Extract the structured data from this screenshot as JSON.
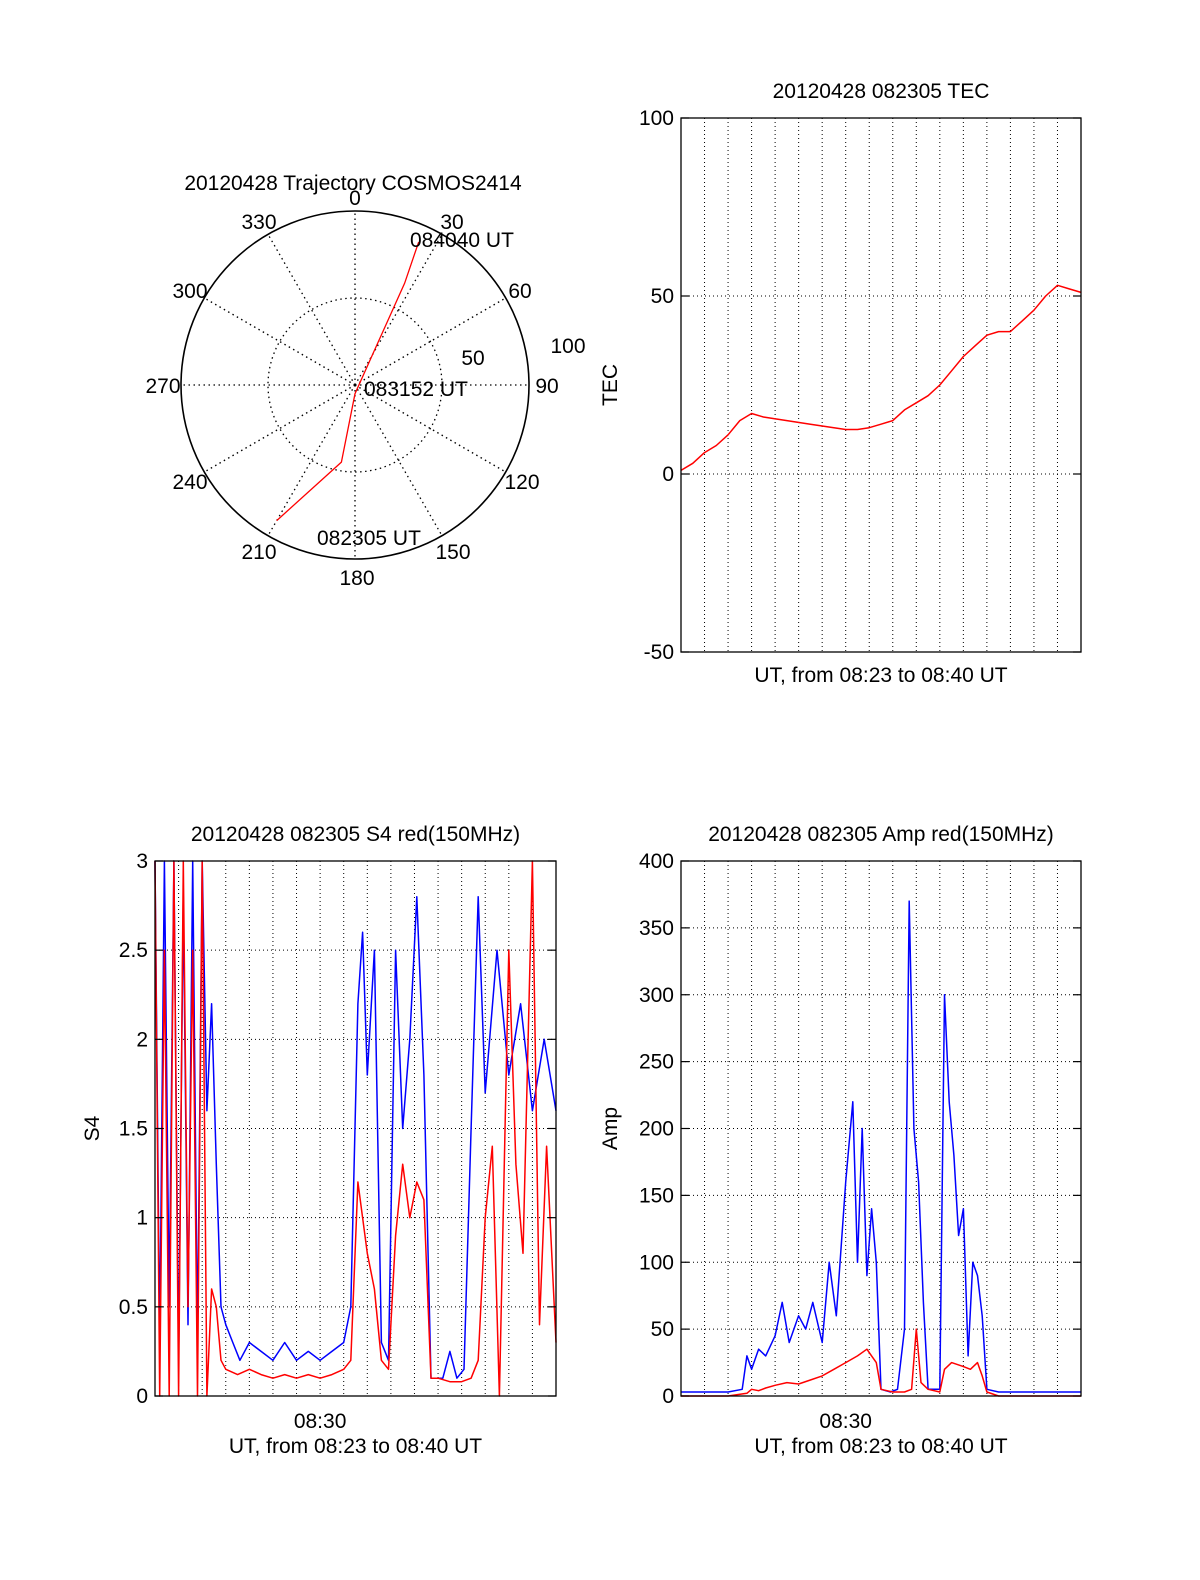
{
  "chart_data": [
    {
      "type": "polar",
      "title": "20120428 Trajectory COSMOS2414",
      "angle_labels": [
        "0",
        "30",
        "60",
        "90",
        "120",
        "150",
        "180",
        "210",
        "240",
        "270",
        "300",
        "330"
      ],
      "angle_ticks": [
        0,
        30,
        60,
        90,
        120,
        150,
        180,
        210,
        240,
        270,
        300,
        330
      ],
      "radial_labels": [
        "50",
        "100"
      ],
      "radial_ticks": [
        50,
        100
      ],
      "rlim": [
        0,
        100
      ],
      "grid": true,
      "line_color": "#ff0000",
      "trajectory": [
        {
          "az": 210,
          "r": 90
        },
        {
          "az": 190,
          "r": 45
        },
        {
          "az": 180,
          "r": 5
        },
        {
          "az": 30,
          "r": 20
        },
        {
          "az": 26,
          "r": 65
        },
        {
          "az": 24,
          "r": 90
        }
      ],
      "annotations": [
        {
          "text": "084040 UT",
          "az": 24,
          "r": 90
        },
        {
          "text": "083152 UT",
          "az": 0,
          "r": 0
        },
        {
          "text": "082305 UT",
          "az": 210,
          "r": 90
        }
      ]
    },
    {
      "type": "line",
      "title": "20120428 082305 TEC",
      "ylabel": "TEC",
      "xlabel": "UT, from 08:23 to 08:40 UT",
      "xlim": [
        0,
        17
      ],
      "ylim": [
        -50,
        100
      ],
      "yticks": [
        -50,
        0,
        50,
        100
      ],
      "ytick_labels": [
        "-50",
        "0",
        "50",
        "100"
      ],
      "grid": true,
      "series": [
        {
          "color": "#ff0000",
          "x": [
            0,
            0.5,
            1.0,
            1.5,
            2.0,
            2.5,
            3.0,
            3.5,
            4.5,
            5.5,
            6.5,
            7.0,
            7.5,
            8.0,
            8.5,
            9.0,
            9.5,
            10.0,
            10.5,
            11.0,
            11.5,
            12.0,
            12.5,
            13.0,
            13.5,
            14.0,
            14.5,
            15.0,
            15.5,
            16.0,
            16.5,
            17.0
          ],
          "y": [
            1,
            3,
            6,
            8,
            11,
            15,
            17,
            16,
            15,
            14,
            13,
            12.5,
            12.5,
            13,
            14,
            15,
            18,
            20,
            22,
            25,
            29,
            33,
            36,
            39,
            40,
            40,
            43,
            46,
            50,
            53,
            52,
            51
          ]
        }
      ]
    },
    {
      "type": "line",
      "title": "20120428 082305 S4 red(150MHz)",
      "ylabel": "S4",
      "xlabel": "UT, from 08:23 to 08:40 UT",
      "xlim": [
        0,
        17
      ],
      "xticks": [
        7
      ],
      "xtick_labels": [
        "08:30"
      ],
      "ylim": [
        0,
        3
      ],
      "yticks": [
        0,
        0.5,
        1,
        1.5,
        2,
        2.5,
        3
      ],
      "ytick_labels": [
        "0",
        "0.5",
        "1",
        "1.5",
        "2",
        "2.5",
        "3"
      ],
      "grid": true,
      "series": [
        {
          "color": "#0000ff",
          "x": [
            0,
            0.2,
            0.4,
            0.6,
            0.8,
            1.0,
            1.2,
            1.4,
            1.6,
            1.8,
            2.0,
            2.2,
            2.4,
            2.6,
            2.8,
            3.0,
            3.3,
            3.6,
            4.0,
            4.5,
            5.0,
            5.5,
            6.0,
            6.5,
            7.0,
            7.5,
            8.0,
            8.3,
            8.6,
            8.8,
            9.0,
            9.3,
            9.6,
            9.9,
            10.2,
            10.5,
            10.8,
            11.1,
            11.4,
            11.7,
            12.0,
            12.2,
            12.5,
            12.8,
            13.1,
            13.4,
            13.7,
            14.0,
            14.5,
            15.0,
            15.5,
            16.0,
            16.5,
            17.0
          ],
          "y": [
            3,
            0.3,
            3,
            0.5,
            3,
            0.2,
            2.8,
            0.4,
            3,
            0.3,
            3,
            1.6,
            2.2,
            1.3,
            0.5,
            0.4,
            0.3,
            0.2,
            0.3,
            0.25,
            0.2,
            0.3,
            0.2,
            0.25,
            0.2,
            0.25,
            0.3,
            0.5,
            2.2,
            2.6,
            1.8,
            2.5,
            0.3,
            0.2,
            2.5,
            1.5,
            2.0,
            2.8,
            1.8,
            0.1,
            0.1,
            0.1,
            0.25,
            0.1,
            0.15,
            1.5,
            2.8,
            1.7,
            2.5,
            1.8,
            2.2,
            1.6,
            2.0,
            1.6
          ]
        },
        {
          "color": "#ff0000",
          "x": [
            0,
            0.2,
            0.4,
            0.6,
            0.8,
            1.0,
            1.2,
            1.4,
            1.6,
            1.8,
            2.0,
            2.2,
            2.4,
            2.6,
            2.8,
            3.0,
            3.5,
            4.0,
            4.5,
            5.0,
            5.5,
            6.0,
            6.5,
            7.0,
            7.5,
            8.0,
            8.3,
            8.6,
            8.8,
            9.0,
            9.3,
            9.6,
            9.9,
            10.2,
            10.5,
            10.8,
            11.1,
            11.4,
            11.7,
            12.0,
            12.5,
            13.0,
            13.4,
            13.7,
            14.0,
            14.3,
            14.6,
            15.0,
            15.3,
            15.6,
            16.0,
            16.3,
            16.6,
            17.0
          ],
          "y": [
            3,
            0,
            2.5,
            0,
            3,
            0,
            3,
            0.5,
            2.5,
            0,
            3,
            0,
            0.6,
            0.5,
            0.2,
            0.15,
            0.12,
            0.15,
            0.12,
            0.1,
            0.12,
            0.1,
            0.12,
            0.1,
            0.12,
            0.15,
            0.2,
            1.2,
            1.0,
            0.8,
            0.6,
            0.2,
            0.15,
            0.9,
            1.3,
            1.0,
            1.2,
            1.1,
            0.1,
            0.1,
            0.08,
            0.08,
            0.1,
            0.2,
            1.0,
            1.4,
            0,
            2.5,
            1.3,
            0.8,
            3,
            0.4,
            1.4,
            0.3
          ]
        }
      ]
    },
    {
      "type": "line",
      "title": "20120428 082305 Amp red(150MHz)",
      "ylabel": "Amp",
      "xlabel": "UT, from 08:23 to 08:40 UT",
      "xlim": [
        0,
        17
      ],
      "xticks": [
        7
      ],
      "xtick_labels": [
        "08:30"
      ],
      "ylim": [
        0,
        400
      ],
      "yticks": [
        0,
        50,
        100,
        150,
        200,
        250,
        300,
        350,
        400
      ],
      "ytick_labels": [
        "0",
        "50",
        "100",
        "150",
        "200",
        "250",
        "300",
        "350",
        "400"
      ],
      "grid": true,
      "series": [
        {
          "color": "#0000ff",
          "x": [
            0,
            1.0,
            2.0,
            2.6,
            2.8,
            3.0,
            3.3,
            3.6,
            4.0,
            4.3,
            4.6,
            5.0,
            5.3,
            5.6,
            6.0,
            6.3,
            6.6,
            7.0,
            7.3,
            7.5,
            7.7,
            7.9,
            8.1,
            8.3,
            8.5,
            8.7,
            8.9,
            9.2,
            9.5,
            9.7,
            9.9,
            10.1,
            10.3,
            10.5,
            11.0,
            11.2,
            11.4,
            11.6,
            11.8,
            12.0,
            12.2,
            12.4,
            12.6,
            12.8,
            13.0,
            13.5,
            14.5,
            15.5,
            16.5,
            17.0
          ],
          "y": [
            3,
            3,
            3,
            5,
            30,
            20,
            35,
            30,
            45,
            70,
            40,
            60,
            50,
            70,
            40,
            100,
            60,
            160,
            220,
            100,
            200,
            90,
            140,
            100,
            5,
            4,
            3,
            5,
            50,
            370,
            200,
            160,
            70,
            5,
            5,
            300,
            220,
            180,
            120,
            140,
            30,
            100,
            90,
            60,
            5,
            3,
            3,
            3,
            3,
            3
          ]
        },
        {
          "color": "#ff0000",
          "x": [
            0,
            2.0,
            2.8,
            3.0,
            3.3,
            3.6,
            4.0,
            4.5,
            5.0,
            5.5,
            6.0,
            6.5,
            7.0,
            7.5,
            7.9,
            8.1,
            8.3,
            8.5,
            9.0,
            9.5,
            9.8,
            10.0,
            10.2,
            10.5,
            11.0,
            11.2,
            11.5,
            12.0,
            12.3,
            12.6,
            12.8,
            13.0,
            13.5,
            17.0
          ],
          "y": [
            0,
            0,
            2,
            5,
            4,
            6,
            8,
            10,
            9,
            12,
            15,
            20,
            25,
            30,
            35,
            30,
            25,
            5,
            3,
            3,
            5,
            50,
            10,
            5,
            3,
            20,
            25,
            22,
            20,
            25,
            15,
            3,
            0,
            0
          ]
        }
      ]
    }
  ]
}
